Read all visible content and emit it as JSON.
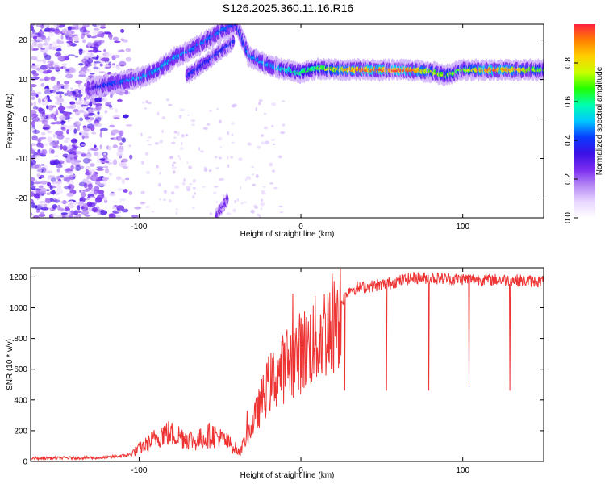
{
  "figure_title": "S126.2025.360.11.16.R16",
  "colors": {
    "snr_line": "#ee3333",
    "spectrogram_bg": "#ffffff",
    "colormap": [
      "#ffffff",
      "#e8d6ff",
      "#b689f5",
      "#7a2cf0",
      "#3a10e6",
      "#0a3cff",
      "#00c8ff",
      "#00ffb0",
      "#22ff00",
      "#c8ff00",
      "#ffd000",
      "#ff8000",
      "#ff2040"
    ]
  },
  "chart_data": [
    {
      "type": "heatmap",
      "title": "",
      "xlabel": "Height of straight line (km)",
      "ylabel": "Frequency (Hz)",
      "xlim": [
        -167,
        150
      ],
      "ylim": [
        -25,
        24
      ],
      "x_ticks": [
        -100,
        0,
        100
      ],
      "x_tick_labels": [
        "-100",
        "0",
        "100"
      ],
      "y_ticks": [
        -20,
        -10,
        0,
        10,
        20
      ],
      "y_tick_labels": [
        "-20",
        "-10",
        "0",
        "10",
        "20"
      ],
      "colorbar": {
        "label": "Normalized spectral amplitude",
        "range": [
          0,
          1
        ],
        "ticks": [
          0.0,
          0.2,
          0.4,
          0.6,
          0.8
        ],
        "tick_labels": [
          "0.0",
          "0.2",
          "0.4",
          "0.6",
          "0.8"
        ]
      },
      "ridge": [
        {
          "x": -132,
          "y": 7.5,
          "a": 0.25
        },
        {
          "x": -122,
          "y": 8.5,
          "a": 0.35
        },
        {
          "x": -110,
          "y": 9.5,
          "a": 0.4
        },
        {
          "x": -98,
          "y": 10.5,
          "a": 0.45
        },
        {
          "x": -88,
          "y": 12.5,
          "a": 0.45
        },
        {
          "x": -78,
          "y": 15.5,
          "a": 0.45
        },
        {
          "x": -68,
          "y": 17.5,
          "a": 0.4
        },
        {
          "x": -58,
          "y": 20.0,
          "a": 0.4
        },
        {
          "x": -48,
          "y": 22.5,
          "a": 0.4
        },
        {
          "x": -40,
          "y": 24.0,
          "a": 0.35
        },
        {
          "x": -32,
          "y": 16.0,
          "a": 0.4
        },
        {
          "x": -20,
          "y": 13.5,
          "a": 0.45
        },
        {
          "x": -10,
          "y": 12.5,
          "a": 0.5
        },
        {
          "x": 0,
          "y": 11.8,
          "a": 0.55
        },
        {
          "x": 10,
          "y": 12.8,
          "a": 0.6
        },
        {
          "x": 25,
          "y": 12.5,
          "a": 0.75
        },
        {
          "x": 45,
          "y": 12.4,
          "a": 0.85
        },
        {
          "x": 65,
          "y": 12.4,
          "a": 0.85
        },
        {
          "x": 80,
          "y": 12.0,
          "a": 0.7
        },
        {
          "x": 90,
          "y": 11.0,
          "a": 0.65
        },
        {
          "x": 100,
          "y": 12.5,
          "a": 0.6
        },
        {
          "x": 115,
          "y": 12.4,
          "a": 0.85
        },
        {
          "x": 135,
          "y": 12.4,
          "a": 0.75
        },
        {
          "x": 150,
          "y": 12.4,
          "a": 0.6
        }
      ],
      "secondary_branch": [
        {
          "x": -70,
          "y": 11.0,
          "a": 0.35
        },
        {
          "x": -60,
          "y": 14.0,
          "a": 0.35
        },
        {
          "x": -50,
          "y": 17.0,
          "a": 0.35
        },
        {
          "x": -42,
          "y": 19.5,
          "a": 0.35
        }
      ],
      "low_branch": [
        {
          "x": -52,
          "y": -24.5,
          "a": 0.25
        },
        {
          "x": -48,
          "y": -22.0,
          "a": 0.25
        },
        {
          "x": -45,
          "y": -20.0,
          "a": 0.25
        }
      ],
      "noise_region": {
        "x_range": [
          -167,
          -100
        ],
        "y_range": [
          -25,
          24
        ],
        "amplitude": 0.12
      }
    },
    {
      "type": "line",
      "title": "",
      "xlabel": "Height of straight line (km)",
      "ylabel": "SNR (10 * v/v)",
      "xlim": [
        -167,
        150
      ],
      "ylim": [
        0,
        1260
      ],
      "x_ticks": [
        -100,
        0,
        100
      ],
      "x_tick_labels": [
        "-100",
        "0",
        "100"
      ],
      "y_ticks": [
        0,
        200,
        400,
        600,
        800,
        1000,
        1200
      ],
      "y_tick_labels": [
        "0",
        "200",
        "400",
        "600",
        "800",
        "1000",
        "1200"
      ],
      "series": [
        {
          "name": "SNR",
          "color": "#ee3333",
          "envelope": [
            {
              "x": -167,
              "y": 20
            },
            {
              "x": -120,
              "y": 25
            },
            {
              "x": -105,
              "y": 45
            },
            {
              "x": -95,
              "y": 100
            },
            {
              "x": -85,
              "y": 170
            },
            {
              "x": -75,
              "y": 150
            },
            {
              "x": -65,
              "y": 120
            },
            {
              "x": -55,
              "y": 160
            },
            {
              "x": -45,
              "y": 110
            },
            {
              "x": -38,
              "y": 60
            },
            {
              "x": -30,
              "y": 250
            },
            {
              "x": -20,
              "y": 520
            },
            {
              "x": -10,
              "y": 640
            },
            {
              "x": 0,
              "y": 740
            },
            {
              "x": 10,
              "y": 820
            },
            {
              "x": 20,
              "y": 950
            },
            {
              "x": 30,
              "y": 1120
            },
            {
              "x": 50,
              "y": 1150
            },
            {
              "x": 70,
              "y": 1195
            },
            {
              "x": 90,
              "y": 1190
            },
            {
              "x": 110,
              "y": 1185
            },
            {
              "x": 130,
              "y": 1180
            },
            {
              "x": 150,
              "y": 1170
            }
          ],
          "dips": [
            {
              "x": 27,
              "y": 460
            },
            {
              "x": 53,
              "y": 460
            },
            {
              "x": 79,
              "y": 460
            },
            {
              "x": 104,
              "y": 500
            },
            {
              "x": 129,
              "y": 460
            }
          ]
        }
      ]
    }
  ]
}
